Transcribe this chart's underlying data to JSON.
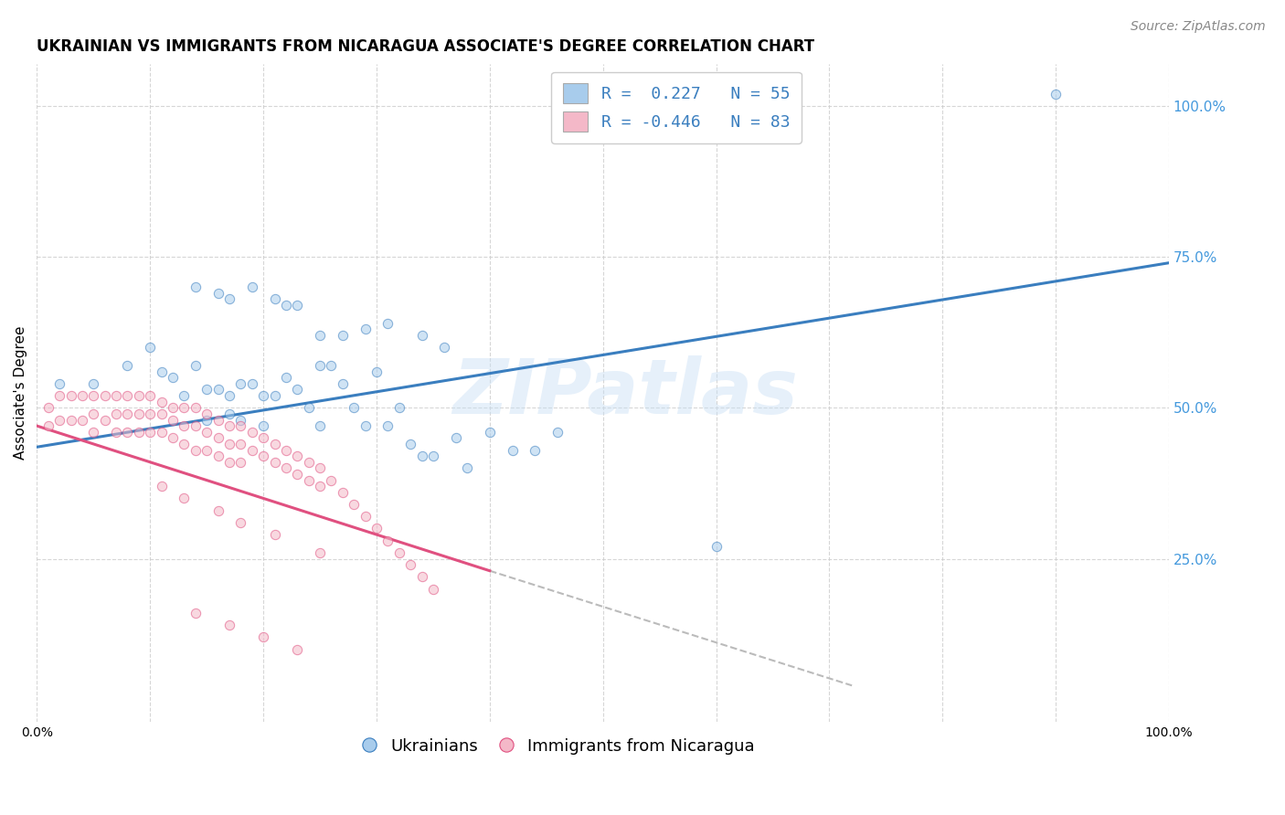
{
  "title": "UKRAINIAN VS IMMIGRANTS FROM NICARAGUA ASSOCIATE'S DEGREE CORRELATION CHART",
  "source": "Source: ZipAtlas.com",
  "ylabel": "Associate's Degree",
  "watermark": "ZIPatlas",
  "legend_ukrainian": "R =  0.227   N = 55",
  "legend_nicaragua": "R = -0.446   N = 83",
  "legend_label1": "Ukrainians",
  "legend_label2": "Immigrants from Nicaragua",
  "blue_color": "#a8ccec",
  "pink_color": "#f4b8c8",
  "blue_line_color": "#3a7ebf",
  "pink_line_color": "#e05080",
  "dashed_line_color": "#bbbbbb",
  "xlim": [
    0.0,
    1.0
  ],
  "ylim": [
    -0.02,
    1.07
  ],
  "yticks": [
    0.25,
    0.5,
    0.75,
    1.0
  ],
  "ytick_labels": [
    "25.0%",
    "50.0%",
    "75.0%",
    "100.0%"
  ],
  "xticks": [
    0.0,
    0.1,
    0.2,
    0.3,
    0.4,
    0.5,
    0.6,
    0.7,
    0.8,
    0.9,
    1.0
  ],
  "blue_scatter_x": [
    0.02,
    0.05,
    0.08,
    0.1,
    0.11,
    0.12,
    0.13,
    0.14,
    0.15,
    0.15,
    0.16,
    0.17,
    0.17,
    0.18,
    0.18,
    0.19,
    0.2,
    0.2,
    0.21,
    0.22,
    0.23,
    0.24,
    0.25,
    0.25,
    0.26,
    0.27,
    0.28,
    0.29,
    0.3,
    0.31,
    0.32,
    0.33,
    0.34,
    0.35,
    0.37,
    0.38,
    0.4,
    0.42,
    0.44,
    0.46,
    0.14,
    0.16,
    0.17,
    0.19,
    0.21,
    0.22,
    0.23,
    0.25,
    0.27,
    0.29,
    0.31,
    0.34,
    0.36,
    0.6,
    0.9
  ],
  "blue_scatter_y": [
    0.54,
    0.54,
    0.57,
    0.6,
    0.56,
    0.55,
    0.52,
    0.57,
    0.53,
    0.48,
    0.53,
    0.52,
    0.49,
    0.54,
    0.48,
    0.54,
    0.52,
    0.47,
    0.52,
    0.55,
    0.53,
    0.5,
    0.57,
    0.47,
    0.57,
    0.54,
    0.5,
    0.47,
    0.56,
    0.47,
    0.5,
    0.44,
    0.42,
    0.42,
    0.45,
    0.4,
    0.46,
    0.43,
    0.43,
    0.46,
    0.7,
    0.69,
    0.68,
    0.7,
    0.68,
    0.67,
    0.67,
    0.62,
    0.62,
    0.63,
    0.64,
    0.62,
    0.6,
    0.27,
    1.02
  ],
  "pink_scatter_x": [
    0.01,
    0.01,
    0.02,
    0.02,
    0.03,
    0.03,
    0.04,
    0.04,
    0.05,
    0.05,
    0.05,
    0.06,
    0.06,
    0.07,
    0.07,
    0.07,
    0.08,
    0.08,
    0.08,
    0.09,
    0.09,
    0.09,
    0.1,
    0.1,
    0.1,
    0.11,
    0.11,
    0.11,
    0.12,
    0.12,
    0.12,
    0.13,
    0.13,
    0.13,
    0.14,
    0.14,
    0.14,
    0.15,
    0.15,
    0.15,
    0.16,
    0.16,
    0.16,
    0.17,
    0.17,
    0.17,
    0.18,
    0.18,
    0.18,
    0.19,
    0.19,
    0.2,
    0.2,
    0.21,
    0.21,
    0.22,
    0.22,
    0.23,
    0.23,
    0.24,
    0.24,
    0.25,
    0.25,
    0.26,
    0.27,
    0.28,
    0.29,
    0.3,
    0.31,
    0.32,
    0.33,
    0.34,
    0.35,
    0.11,
    0.13,
    0.16,
    0.18,
    0.21,
    0.25,
    0.14,
    0.17,
    0.2,
    0.23
  ],
  "pink_scatter_y": [
    0.5,
    0.47,
    0.52,
    0.48,
    0.52,
    0.48,
    0.52,
    0.48,
    0.52,
    0.49,
    0.46,
    0.52,
    0.48,
    0.52,
    0.49,
    0.46,
    0.52,
    0.49,
    0.46,
    0.52,
    0.49,
    0.46,
    0.52,
    0.49,
    0.46,
    0.51,
    0.49,
    0.46,
    0.5,
    0.48,
    0.45,
    0.5,
    0.47,
    0.44,
    0.5,
    0.47,
    0.43,
    0.49,
    0.46,
    0.43,
    0.48,
    0.45,
    0.42,
    0.47,
    0.44,
    0.41,
    0.47,
    0.44,
    0.41,
    0.46,
    0.43,
    0.45,
    0.42,
    0.44,
    0.41,
    0.43,
    0.4,
    0.42,
    0.39,
    0.41,
    0.38,
    0.4,
    0.37,
    0.38,
    0.36,
    0.34,
    0.32,
    0.3,
    0.28,
    0.26,
    0.24,
    0.22,
    0.2,
    0.37,
    0.35,
    0.33,
    0.31,
    0.29,
    0.26,
    0.16,
    0.14,
    0.12,
    0.1
  ],
  "blue_trend_x": [
    0.0,
    1.0
  ],
  "blue_trend_y": [
    0.435,
    0.74
  ],
  "pink_trend_x": [
    0.0,
    0.4
  ],
  "pink_trend_y": [
    0.47,
    0.23
  ],
  "dashed_trend_x": [
    0.4,
    0.72
  ],
  "dashed_trend_y": [
    0.23,
    0.04
  ],
  "title_fontsize": 12,
  "source_fontsize": 10,
  "axis_label_fontsize": 11,
  "tick_fontsize": 10,
  "legend_fontsize": 13,
  "watermark_fontsize": 60,
  "scatter_size": 55,
  "scatter_alpha": 0.55,
  "background_color": "#ffffff",
  "grid_color": "#cccccc",
  "grid_alpha": 0.8,
  "right_ytick_color": "#4499dd"
}
